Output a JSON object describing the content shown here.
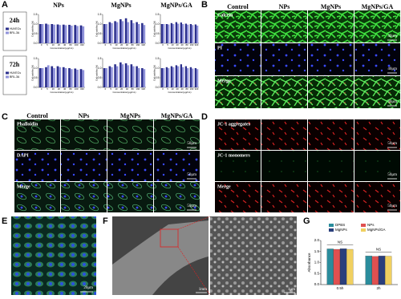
{
  "panel_a": {
    "label": "A",
    "column_titles": [
      "NPs",
      "MgNPs",
      "MgNPs/GA"
    ],
    "row_labels": [
      "24h",
      "72h"
    ],
    "series": [
      {
        "name": "HUVECs",
        "color": "#2b2f8c"
      },
      {
        "name": "BRL-3A",
        "color": "#8f92da"
      }
    ],
    "y_label": "Cell viability (%)",
    "x_label": "Concentration(μg/mL)",
    "categories": [
      "0",
      "5",
      "10",
      "20",
      "40",
      "80",
      "160",
      "320"
    ],
    "ylim": [
      0,
      1.5
    ],
    "yticks": [
      {
        "value": 0,
        "label": "0.0"
      },
      {
        "value": 0.5,
        "label": "0.5"
      },
      {
        "value": 1,
        "label": "1.0"
      },
      {
        "value": 1.5,
        "label": "1.5"
      }
    ],
    "charts": [
      [
        [
          [
            1.0,
            1.02,
            1.0,
            0.98,
            0.97,
            0.96,
            0.95,
            0.93
          ],
          [
            1.0,
            0.98,
            0.97,
            0.95,
            0.94,
            0.92,
            0.9,
            0.88
          ]
        ],
        [
          [
            1.0,
            1.1,
            1.15,
            1.25,
            1.3,
            1.2,
            1.1,
            1.05
          ],
          [
            1.0,
            1.05,
            1.1,
            1.15,
            1.1,
            1.05,
            1.0,
            0.95
          ]
        ],
        [
          [
            1.0,
            1.0,
            1.05,
            1.1,
            1.08,
            1.02,
            1.0,
            0.98
          ],
          [
            1.0,
            0.98,
            1.0,
            1.02,
            1.0,
            0.97,
            0.95,
            0.92
          ]
        ]
      ],
      [
        [
          [
            1.0,
            1.05,
            1.1,
            1.1,
            1.05,
            1.0,
            0.98,
            0.95
          ],
          [
            1.0,
            1.15,
            1.0,
            1.05,
            1.0,
            0.95,
            0.92,
            0.9
          ]
        ],
        [
          [
            1.0,
            1.1,
            1.2,
            1.3,
            1.25,
            1.2,
            1.1,
            1.0
          ],
          [
            1.0,
            1.05,
            1.1,
            1.2,
            1.15,
            1.1,
            1.0,
            0.95
          ]
        ],
        [
          [
            1.0,
            1.05,
            1.1,
            1.15,
            1.2,
            1.1,
            1.05,
            1.0
          ],
          [
            1.0,
            1.0,
            1.05,
            1.1,
            1.05,
            1.0,
            0.98,
            0.95
          ]
        ]
      ]
    ]
  },
  "panel_b": {
    "label": "B",
    "column_titles": [
      "Control",
      "NPs",
      "MgNPs",
      "MgNPs/GA"
    ],
    "row_labels": [
      "Calcein",
      "PI",
      "Merge"
    ],
    "scale_bar": "40μm"
  },
  "panel_c": {
    "label": "C",
    "column_titles": [
      "Control",
      "NPs",
      "MgNPs",
      "MgNPs/GA"
    ],
    "row_labels": [
      "Phalloidin",
      "DAPI",
      "Merge"
    ],
    "scale_bar": "50μm"
  },
  "panel_d": {
    "label": "D",
    "row_labels": [
      "JC-1 aggregates",
      "JC-1 monomers",
      "Merge"
    ],
    "scale_bar": "50μm"
  },
  "panel_e": {
    "label": "E",
    "scale_bar": "20μm"
  },
  "panel_f": {
    "label": "F",
    "scale_bars": [
      "1mm",
      "1μm"
    ]
  },
  "panel_g": {
    "label": "G",
    "y_label": "Absorbance",
    "categories": [
      "0.5h",
      "2h"
    ],
    "annotation": "NS",
    "ylim": [
      0,
      2
    ],
    "yticks": [
      {
        "value": 0,
        "label": "0.0"
      },
      {
        "value": 0.5,
        "label": "0.5"
      },
      {
        "value": 1,
        "label": "1.0"
      },
      {
        "value": 1.5,
        "label": "1.5"
      },
      {
        "value": 2,
        "label": "2.0"
      }
    ],
    "series": [
      {
        "name": "DPBS",
        "color": "#2a8c9c",
        "values": [
          1.62,
          1.3
        ]
      },
      {
        "name": "NPs",
        "color": "#e05050",
        "values": [
          1.6,
          1.28
        ]
      },
      {
        "name": "MgNPs",
        "color": "#2a3f7c",
        "values": [
          1.63,
          1.3
        ]
      },
      {
        "name": "MgNPs/GA",
        "color": "#f0d060",
        "values": [
          1.6,
          1.29
        ]
      }
    ]
  }
}
